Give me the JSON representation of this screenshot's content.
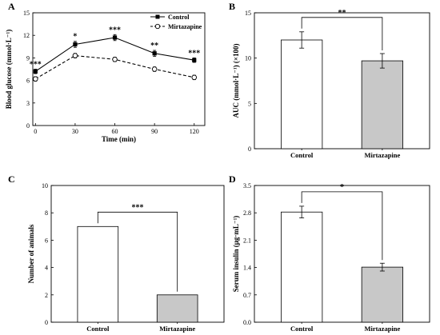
{
  "chart_data": [
    {
      "panel": "A",
      "type": "line",
      "xlabel": "Time (min)",
      "ylabel": "Blood glucose (mmol·L⁻¹)",
      "x": [
        0,
        30,
        60,
        90,
        120
      ],
      "xticks": [
        "0",
        "30",
        "60",
        "90",
        "120"
      ],
      "yticks": [
        "0",
        "3",
        "6",
        "9",
        "12",
        "15"
      ],
      "xlim": [
        -2,
        128
      ],
      "ylim": [
        0,
        15
      ],
      "legend": "top-right",
      "series": [
        {
          "name": "Control",
          "values": [
            7.2,
            10.8,
            11.7,
            9.6,
            8.7
          ],
          "errors": [
            0.3,
            0.4,
            0.4,
            0.4,
            0.3
          ],
          "style": "solid",
          "marker": "filled-square",
          "color": "#000000"
        },
        {
          "name": "Mirtazapine",
          "values": [
            6.2,
            9.3,
            8.8,
            7.5,
            6.4
          ],
          "errors": [
            0.3,
            0.3,
            0.3,
            0.3,
            0.3
          ],
          "style": "dashed",
          "marker": "open-circle",
          "color": "#000000"
        }
      ],
      "significance": [
        "***",
        "*",
        "***",
        "**",
        "***"
      ]
    },
    {
      "panel": "B",
      "type": "bar",
      "ylabel": "AUC (mmol·L⁻¹) (×100)",
      "categories": [
        "Control",
        "Mirtazapine"
      ],
      "values": [
        12.0,
        9.7
      ],
      "errors": [
        0.9,
        0.8
      ],
      "yticks": [
        "0",
        "5",
        "10",
        "15"
      ],
      "ylim": [
        0,
        15
      ],
      "bar_colors": [
        "#ffffff",
        "#c8c8c8"
      ],
      "significance": "**"
    },
    {
      "panel": "C",
      "type": "bar",
      "ylabel": "Number of animals",
      "categories": [
        "Control",
        "Mirtazapine"
      ],
      "values": [
        7,
        2
      ],
      "errors": [
        0,
        0
      ],
      "yticks": [
        "0",
        "2",
        "4",
        "6",
        "8",
        "10"
      ],
      "ylim": [
        0,
        10
      ],
      "bar_colors": [
        "#ffffff",
        "#c8c8c8"
      ],
      "significance": "***"
    },
    {
      "panel": "D",
      "type": "bar",
      "ylabel": "Serum insulin (μg·mL⁻¹)",
      "categories": [
        "Control",
        "Mirtazapine"
      ],
      "values": [
        2.82,
        1.41
      ],
      "errors": [
        0.15,
        0.1
      ],
      "yticks": [
        "0.0",
        "0.7",
        "1.4",
        "2.1",
        "2.8",
        "3.5"
      ],
      "ylim": [
        0,
        3.5
      ],
      "bar_colors": [
        "#ffffff",
        "#c8c8c8"
      ],
      "significance": "*"
    }
  ]
}
